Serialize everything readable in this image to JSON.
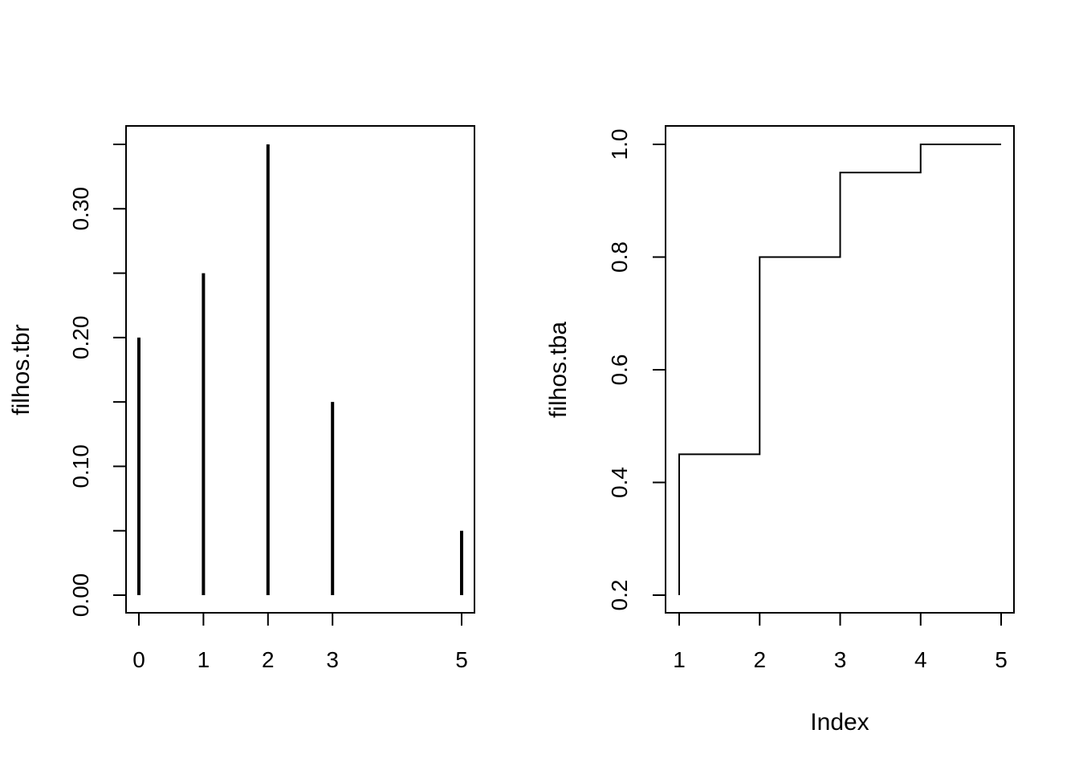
{
  "chart_data": [
    {
      "type": "bar",
      "style": "histogram-spikes",
      "x": [
        0,
        1,
        2,
        3,
        5
      ],
      "values": [
        0.2,
        0.25,
        0.35,
        0.15,
        0.05
      ],
      "x_tick_labels": [
        "0",
        "1",
        "2",
        "3",
        "5"
      ],
      "y_ticks": [
        0.0,
        0.1,
        0.2,
        0.3
      ],
      "y_tick_labels": [
        "0.00",
        "0.10",
        "0.20",
        "0.30"
      ],
      "xlim": [
        0,
        5
      ],
      "ylim": [
        0,
        0.35
      ],
      "title": "",
      "xlabel": "",
      "ylabel": "filhos.tbr",
      "grid": false
    },
    {
      "type": "line",
      "style": "step",
      "x": [
        1,
        2,
        3,
        4,
        5
      ],
      "values": [
        0.45,
        0.8,
        0.95,
        1.0,
        1.0
      ],
      "x_ticks": [
        1,
        2,
        3,
        4,
        5
      ],
      "x_tick_labels": [
        "1",
        "2",
        "3",
        "4",
        "5"
      ],
      "y_ticks": [
        0.2,
        0.4,
        0.6,
        0.8,
        1.0
      ],
      "y_tick_labels": [
        "0.2",
        "0.4",
        "0.6",
        "0.8",
        "1.0"
      ],
      "xlim": [
        1,
        5
      ],
      "ylim": [
        0.2,
        1.0
      ],
      "title": "",
      "xlabel": "Index",
      "ylabel": "filhos.tba",
      "grid": false
    }
  ]
}
